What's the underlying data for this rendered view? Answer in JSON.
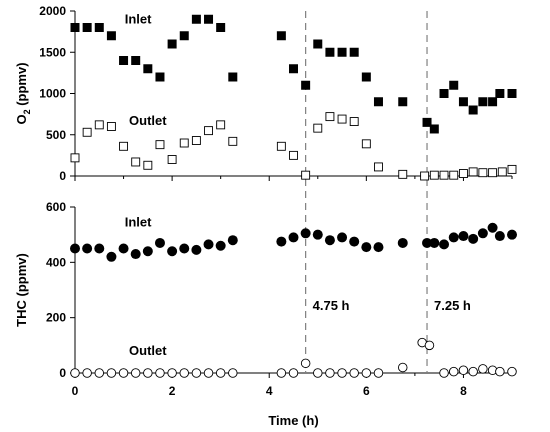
{
  "chart_data": [
    {
      "type": "scatter",
      "ylabel_main": "O",
      "ylabel_sub": "2",
      "ylabel_tail": " (ppmv)",
      "ylim": [
        0,
        2000
      ],
      "yticks": [
        "0",
        "500",
        "1000",
        "1500",
        "2000"
      ],
      "xlim": [
        0,
        9
      ],
      "grid": false,
      "series": [
        {
          "name": "Inlet",
          "marker": "filled-square",
          "x": [
            0,
            0.25,
            0.5,
            0.75,
            1.0,
            1.25,
            1.5,
            1.75,
            2.0,
            2.25,
            2.5,
            2.75,
            3.0,
            3.25,
            4.25,
            4.5,
            4.75,
            5.0,
            5.25,
            5.5,
            5.75,
            6.0,
            6.25,
            6.75,
            7.25,
            7.4,
            7.6,
            7.8,
            8.0,
            8.2,
            8.4,
            8.6,
            8.75,
            9.0
          ],
          "y": [
            1800,
            1800,
            1800,
            1700,
            1400,
            1400,
            1300,
            1200,
            1600,
            1700,
            1900,
            1900,
            1800,
            1200,
            1700,
            1300,
            1100,
            1600,
            1500,
            1500,
            1500,
            1200,
            900,
            900,
            650,
            570,
            1000,
            1100,
            900,
            800,
            900,
            900,
            1000,
            1000
          ]
        },
        {
          "name": "Outlet",
          "marker": "open-square",
          "x": [
            0,
            0.25,
            0.5,
            0.75,
            1.0,
            1.25,
            1.5,
            1.75,
            2.0,
            2.25,
            2.5,
            2.75,
            3.0,
            3.25,
            4.25,
            4.5,
            4.75,
            5.0,
            5.25,
            5.5,
            5.75,
            6.0,
            6.25,
            6.75,
            7.2,
            7.4,
            7.6,
            7.8,
            8.0,
            8.2,
            8.4,
            8.6,
            8.8,
            9.0
          ],
          "y": [
            220,
            530,
            620,
            600,
            360,
            170,
            130,
            380,
            200,
            400,
            430,
            550,
            620,
            420,
            360,
            250,
            10,
            580,
            720,
            690,
            660,
            390,
            110,
            20,
            0,
            10,
            10,
            10,
            30,
            50,
            40,
            40,
            50,
            80
          ]
        }
      ],
      "annotations": [
        {
          "text": "Inlet",
          "x": 1.3,
          "y": 1850
        },
        {
          "text": "Outlet",
          "x": 1.5,
          "y": 620
        }
      ]
    },
    {
      "type": "scatter",
      "xlabel": "Time (h)",
      "ylabel": "THC (ppmv)",
      "xlim": [
        0,
        9
      ],
      "ylim": [
        0,
        600
      ],
      "xticks": [
        "0",
        "2",
        "4",
        "6",
        "8"
      ],
      "yticks": [
        "0",
        "200",
        "400",
        "600"
      ],
      "grid": false,
      "series": [
        {
          "name": "Inlet",
          "marker": "filled-circle",
          "x": [
            0,
            0.25,
            0.5,
            0.75,
            1.0,
            1.25,
            1.5,
            1.75,
            2.0,
            2.25,
            2.5,
            2.75,
            3.0,
            3.25,
            4.25,
            4.5,
            4.75,
            5.0,
            5.25,
            5.5,
            5.75,
            6.0,
            6.25,
            6.75,
            7.25,
            7.4,
            7.6,
            7.8,
            8.0,
            8.2,
            8.4,
            8.6,
            8.75,
            9.0
          ],
          "y": [
            450,
            450,
            450,
            420,
            450,
            430,
            440,
            470,
            440,
            450,
            445,
            465,
            460,
            480,
            475,
            490,
            505,
            500,
            480,
            490,
            475,
            455,
            455,
            470,
            470,
            470,
            465,
            490,
            495,
            485,
            505,
            525,
            495,
            500
          ]
        },
        {
          "name": "Outlet",
          "marker": "open-circle",
          "x": [
            0,
            0.25,
            0.5,
            0.75,
            1.0,
            1.25,
            1.5,
            1.75,
            2.0,
            2.25,
            2.5,
            2.75,
            3.0,
            3.25,
            4.25,
            4.5,
            4.75,
            5.0,
            5.25,
            5.5,
            5.75,
            6.0,
            6.25,
            6.75,
            7.15,
            7.3,
            7.6,
            7.8,
            8.0,
            8.2,
            8.4,
            8.6,
            8.75,
            9.0
          ],
          "y": [
            0,
            0,
            0,
            0,
            0,
            0,
            0,
            0,
            0,
            0,
            0,
            0,
            0,
            0,
            0,
            0,
            35,
            0,
            0,
            0,
            0,
            0,
            0,
            20,
            110,
            100,
            0,
            5,
            10,
            5,
            15,
            10,
            5,
            5
          ]
        }
      ],
      "annotations": [
        {
          "text": "Inlet",
          "x": 1.3,
          "y": 530
        },
        {
          "text": "Outlet",
          "x": 1.5,
          "y": 65
        }
      ]
    }
  ],
  "markers": [
    {
      "x": 4.75,
      "label": "4.75 h"
    },
    {
      "x": 7.25,
      "label": "7.25 h"
    }
  ]
}
